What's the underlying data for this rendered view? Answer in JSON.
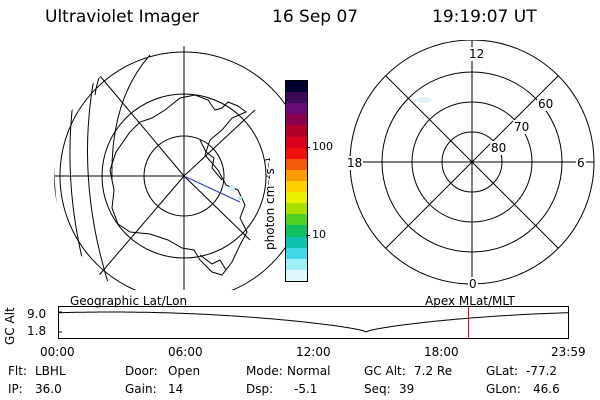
{
  "header": {
    "instrument": "Ultraviolet Imager",
    "date": "16 Sep 07",
    "time": "19:19:07 UT"
  },
  "geo_panel": {
    "label": "Geographic Lat/Lon"
  },
  "mag_panel": {
    "label": "Apex MLat/MLT",
    "mlt_labels": [
      "12",
      "18",
      "6",
      "0"
    ],
    "mlat_labels": [
      "60",
      "70",
      "80"
    ]
  },
  "colorbar": {
    "unit_label": "photon cm⁻²s⁻¹",
    "ticks": [
      "100",
      "10"
    ],
    "colors": [
      "#000030",
      "#3a0a55",
      "#6a0a75",
      "#8a0050",
      "#b0002a",
      "#d8001a",
      "#f01010",
      "#f55a0a",
      "#fa9a05",
      "#ffd000",
      "#e9ef00",
      "#a8e000",
      "#50d020",
      "#10c060",
      "#10c0b0",
      "#40d8e8",
      "#a0eef6",
      "#e0f8fc"
    ]
  },
  "altitude_plot": {
    "axis_label": "GC Alt",
    "y_ticks": [
      "9.0",
      "1.8"
    ],
    "x_ticks": [
      "00:00",
      "06:00",
      "12:00",
      "18:00",
      "23:59"
    ],
    "current_time_hours": 19.32,
    "perigee_time_hours": 14.5,
    "apogee_value": 9.0,
    "perigee_value": 1.8
  },
  "info": {
    "filter_label": "Flt:",
    "filter_value": "LBHL",
    "ip_label": "IP:",
    "ip_value": "36.0",
    "door_label": "Door:",
    "door_value": "Open",
    "gain_label": "Gain:",
    "gain_value": "14",
    "mode_label": "Mode:",
    "mode_value": "Normal",
    "dsp_label": "Dsp:",
    "dsp_value": "-5.1",
    "gcalt_label": "GC Alt:",
    "gcalt_value": "7.2 Re",
    "seq_label": "Seq:",
    "seq_value": "39",
    "glat_label": "GLat:",
    "glat_value": "-77.2",
    "glon_label": "GLon:",
    "glon_value": "46.6"
  }
}
